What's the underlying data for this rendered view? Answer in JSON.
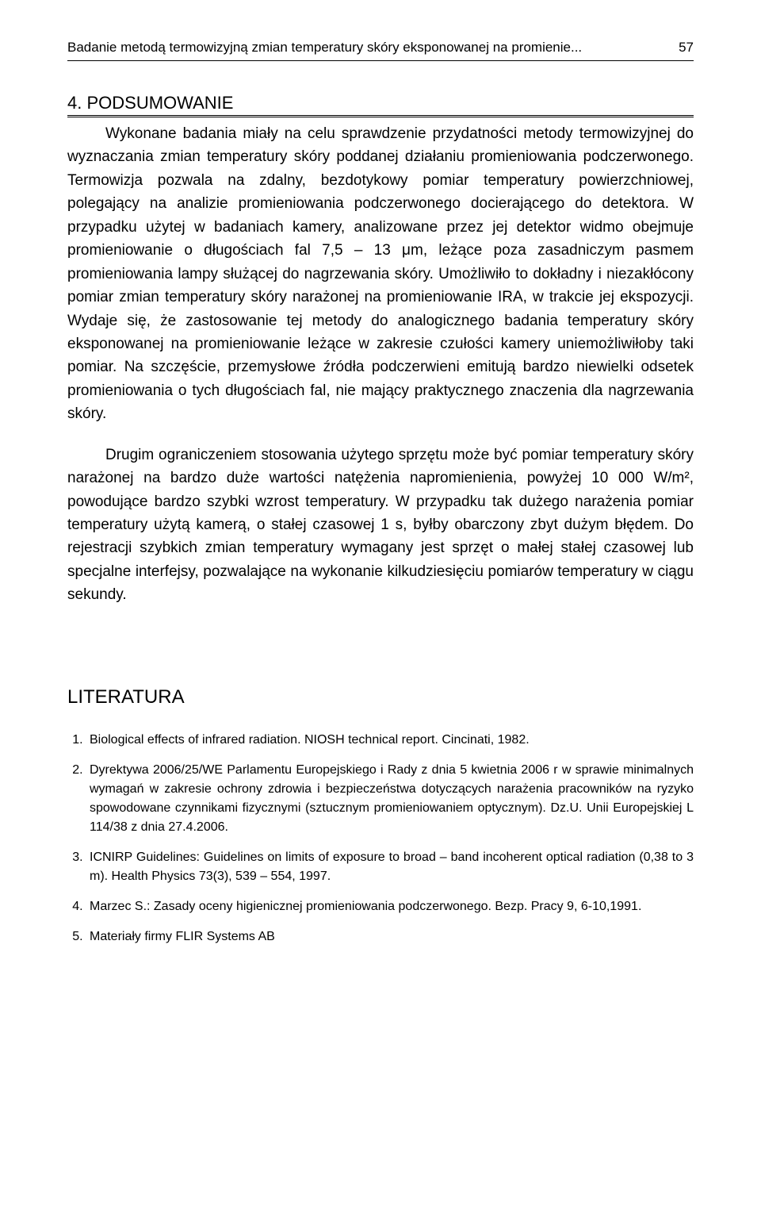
{
  "page": {
    "running_title": "Badanie metodą termowizyjną zmian temperatury skóry eksponowanej na promienie...",
    "page_number": "57"
  },
  "section": {
    "number": "4.",
    "title": "PODSUMOWANIE"
  },
  "paragraphs": {
    "p1": "Wykonane badania miały na celu sprawdzenie przydatności metody termowizyjnej do wyznaczania zmian temperatury skóry poddanej działaniu promieniowania podczerwonego. Termowizja pozwala na zdalny, bezdotykowy pomiar temperatury powierzchniowej, polegający na analizie promieniowania podczerwonego docierającego do detektora. W przypadku użytej w badaniach kamery, analizowane przez jej detektor widmo obejmuje promieniowanie o długościach fal 7,5 – 13 μm, leżące poza zasadniczym pasmem promieniowania lampy służącej do nagrzewania skóry. Umożliwiło to dokładny i niezakłócony pomiar zmian temperatury skóry narażonej na promieniowanie IRA, w trakcie jej ekspozycji. Wydaje się, że zastosowanie tej metody do analogicznego badania temperatury skóry eksponowanej na promieniowanie leżące w zakresie czułości kamery uniemożliwiłoby taki pomiar. Na szczęście, przemysłowe źródła podczerwieni emitują bardzo niewielki odsetek  promieniowania o tych długościach fal, nie mający praktycznego znaczenia dla nagrzewania skóry.",
    "p2": "Drugim ograniczeniem stosowania użytego sprzętu może być pomiar temperatury skóry narażonej na bardzo duże wartości natężenia napromienienia, powyżej 10 000 W/m², powodujące bardzo szybki wzrost temperatury. W przypadku tak dużego narażenia pomiar temperatury użytą kamerą, o stałej czasowej 1 s, byłby obarczony  zbyt dużym błędem. Do rejestracji szybkich zmian temperatury wymagany jest sprzęt o małej stałej czasowej lub specjalne interfejsy, pozwalające na wykonanie kilkudziesięciu pomiarów temperatury w ciągu sekundy."
  },
  "literature": {
    "title": "LITERATURA",
    "items": [
      "Biological effects of infrared radiation. NIOSH technical report. Cincinati, 1982.",
      "Dyrektywa 2006/25/WE Parlamentu Europejskiego i Rady z dnia 5 kwietnia 2006 r w sprawie minimalnych wymagań w zakresie ochrony zdrowia i bezpieczeństwa dotyczących narażenia pracowników  na ryzyko spowodowane czynnikami fizycznymi (sztucznym promieniowaniem optycznym). Dz.U. Unii Europejskiej L 114/38 z dnia 27.4.2006.",
      "ICNIRP Guidelines: Guidelines on limits of exposure to broad – band incoherent optical radiation (0,38 to 3  m). Health Physics 73(3), 539 – 554, 1997.",
      "Marzec S.: Zasady oceny higienicznej promieniowania podczerwonego. Bezp. Pracy 9, 6-10,1991.",
      "Materiały firmy FLIR Systems AB"
    ]
  }
}
